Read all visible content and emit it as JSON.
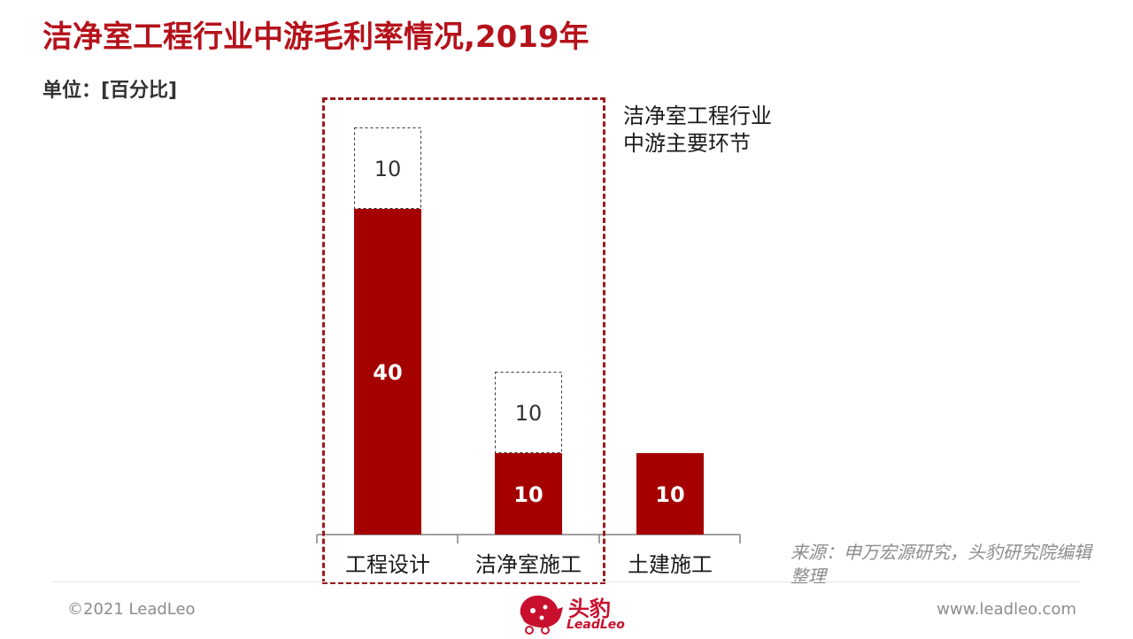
{
  "page": {
    "title": "洁净室工程行业中游毛利率情况,2019年",
    "unit": "单位：[百分比]",
    "highlight_label_lines": [
      "洁净室工程行业",
      "中游主要环节"
    ],
    "source": "来源：申万宏源研究，头豹研究院编辑整理",
    "copyright": "©2021 LeadLeo",
    "website": "www.leadleo.com",
    "logo_name": "头豹",
    "logo_en": "LeadLeo"
  },
  "colors": {
    "title": "#b5121b",
    "bar": "#a50000",
    "highlight_border": "#9b1b1f"
  },
  "chart_data": {
    "type": "bar",
    "stacked": true,
    "categories": [
      "工程设计",
      "洁净室施工",
      "土建施工"
    ],
    "series": [
      {
        "values": [
          40,
          10,
          10
        ],
        "style": "solid"
      },
      {
        "values": [
          10,
          10,
          null
        ],
        "style": "dashed"
      }
    ],
    "ylim": [
      0,
      50
    ],
    "title": "",
    "xlabel": "",
    "ylabel": "",
    "grid": false,
    "y_axis_visible": false,
    "highlighted_categories": [
      "工程设计",
      "洁净室施工"
    ]
  }
}
